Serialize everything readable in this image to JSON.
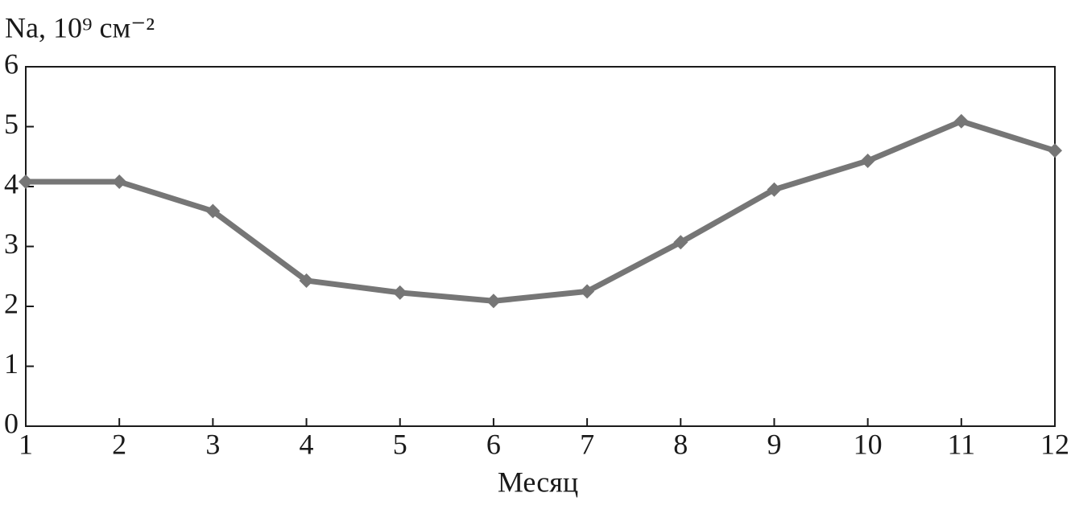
{
  "chart_data": {
    "type": "line",
    "y_label": "Na, 10⁹ см⁻²",
    "x_label": "Месяц",
    "x": [
      1,
      2,
      3,
      4,
      5,
      6,
      7,
      8,
      9,
      10,
      11,
      12
    ],
    "series": [
      {
        "color": "#767676",
        "values": [
          4.08,
          4.08,
          3.59,
          2.43,
          2.23,
          2.09,
          2.25,
          3.07,
          3.95,
          4.43,
          5.09,
          4.6
        ]
      }
    ],
    "xlim": [
      1,
      12
    ],
    "xticks": [
      1,
      2,
      3,
      4,
      5,
      6,
      7,
      8,
      9,
      10,
      11,
      12
    ],
    "ylim": [
      0,
      6
    ],
    "yticks": [
      0,
      1,
      2,
      3,
      4,
      5,
      6
    ],
    "grid": false
  }
}
